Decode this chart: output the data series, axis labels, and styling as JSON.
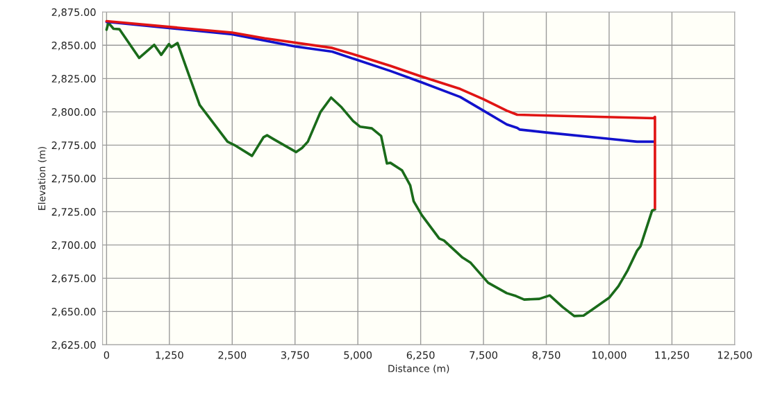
{
  "chart_data": {
    "type": "line",
    "xlabel": "Distance (m)",
    "ylabel": "Elevation (m)",
    "xlim": [
      -80,
      12500
    ],
    "xticks": [
      0,
      {
        "value": 1250,
        "label": "1,250"
      },
      {
        "value": 2500,
        "label": "2,500"
      },
      {
        "value": 3750,
        "label": "3,750"
      },
      {
        "value": 5000,
        "label": "5,000"
      },
      {
        "value": 6250,
        "label": "6,250"
      },
      {
        "value": 7500,
        "label": "7,500"
      },
      {
        "value": 8750,
        "label": "8,750"
      },
      {
        "value": 10000,
        "label": "10,000"
      },
      {
        "value": 11250,
        "label": "11,250"
      },
      {
        "value": 12500,
        "label": "12,500"
      }
    ],
    "ylim": [
      2625,
      2875
    ],
    "yticks": [
      {
        "value": 2625,
        "label": "2,625.00"
      },
      {
        "value": 2650,
        "label": "2,650.00"
      },
      {
        "value": 2675,
        "label": "2,675.00"
      },
      {
        "value": 2700,
        "label": "2,700.00"
      },
      {
        "value": 2725,
        "label": "2,725.00"
      },
      {
        "value": 2750,
        "label": "2,750.00"
      },
      {
        "value": 2775,
        "label": "2,775.00"
      },
      {
        "value": 2800,
        "label": "2,800.00"
      },
      {
        "value": 2825,
        "label": "2,825.00"
      },
      {
        "value": 2850,
        "label": "2,850.00"
      },
      {
        "value": 2875,
        "label": "2,875.00"
      }
    ],
    "grid": true,
    "legend": false,
    "marker": "none",
    "line_style": "solid",
    "series": [
      {
        "color": "#1a6b1a",
        "x": [
          0,
          37,
          139,
          255,
          648,
          949,
          1088,
          1241,
          1287,
          1412,
          1574,
          1852,
          2407,
          2546,
          2894,
          3125,
          3194,
          3333,
          3773,
          3889,
          4005,
          4259,
          4468,
          4676,
          4907,
          5046,
          5278,
          5463,
          5579,
          5648,
          5880,
          6042,
          6111,
          6273,
          6620,
          6713,
          7083,
          7245,
          7593,
          7963,
          8148,
          8310,
          8611,
          8819,
          9074,
          9306,
          9491,
          9676,
          10000,
          10185,
          10370,
          10556,
          10625,
          10856,
          10912
        ],
        "values": [
          2861.7,
          2866.9,
          2862.4,
          2862.1,
          2840.5,
          2850.3,
          2842.8,
          2850.9,
          2848.6,
          2851.7,
          2834.5,
          2805.2,
          2777.6,
          2775,
          2766.9,
          2781,
          2782.4,
          2779.3,
          2769.8,
          2772.8,
          2777.6,
          2800,
          2810.7,
          2803.4,
          2793.1,
          2788.8,
          2787.6,
          2781.9,
          2761.2,
          2761.7,
          2756,
          2744.8,
          2732.8,
          2722.4,
          2704.8,
          2703.4,
          2690.5,
          2686.6,
          2671.6,
          2663.8,
          2661.6,
          2659,
          2659.5,
          2662.1,
          2653.4,
          2646.6,
          2646.9,
          2651.7,
          2660.3,
          2669,
          2681,
          2695.7,
          2699.1,
          2725.9,
          2726.7
        ]
      },
      {
        "color": "#1212cc",
        "x": [
          0,
          2500,
          3750,
          4491,
          5000,
          5648,
          6250,
          7037,
          7500,
          7963,
          8171,
          8218,
          8750,
          10000,
          10556,
          10894
        ],
        "values": [
          2867.6,
          2858.3,
          2849.1,
          2845.2,
          2838.8,
          2830.7,
          2822.4,
          2811.2,
          2800.9,
          2790.5,
          2787.9,
          2786.7,
          2784.5,
          2779.7,
          2777.6,
          2777.6
        ]
      },
      {
        "color": "#e01414",
        "x": [
          0,
          2500,
          3148,
          4491,
          5000,
          5648,
          6250,
          7037,
          7500,
          7963,
          8171,
          10880,
          10912,
          10912
        ],
        "values": [
          2868.1,
          2859.5,
          2855.2,
          2848,
          2842.2,
          2834.5,
          2826.7,
          2817.2,
          2809.5,
          2800.9,
          2797.8,
          2795.2,
          2796.2,
          2727.6
        ]
      }
    ]
  }
}
